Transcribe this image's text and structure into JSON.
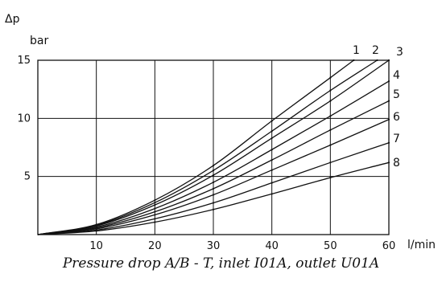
{
  "chart_data": {
    "type": "line",
    "title": "Pressure drop A/B - T, inlet I01A, outlet U01A",
    "ylabel": "Δp",
    "yunit": "bar",
    "xunit": "l/min",
    "xlim": [
      0,
      60
    ],
    "ylim": [
      0,
      15
    ],
    "x_ticks": [
      "10",
      "20",
      "30",
      "40",
      "50",
      "60"
    ],
    "y_ticks": [
      "5",
      "10",
      "15"
    ],
    "grid": true,
    "series": [
      {
        "name": "1",
        "x": [
          0,
          10,
          20,
          30,
          40,
          50,
          54
        ],
        "y": [
          0,
          0.86,
          2.96,
          5.94,
          9.78,
          13.5,
          15
        ]
      },
      {
        "name": "2",
        "x": [
          0,
          10,
          20,
          30,
          40,
          50,
          58
        ],
        "y": [
          0,
          0.8,
          2.75,
          5.52,
          8.9,
          12.4,
          15
        ]
      },
      {
        "name": "3",
        "x": [
          0,
          10,
          20,
          30,
          40,
          50,
          60
        ],
        "y": [
          0,
          0.74,
          2.55,
          5.11,
          8.3,
          11.5,
          15
        ]
      },
      {
        "name": "4",
        "x": [
          0,
          10,
          20,
          30,
          40,
          50,
          60
        ],
        "y": [
          0,
          0.65,
          2.24,
          4.5,
          7.31,
          10.2,
          13.2
        ]
      },
      {
        "name": "5",
        "x": [
          0,
          10,
          20,
          30,
          40,
          50,
          60
        ],
        "y": [
          0,
          0.57,
          1.96,
          3.95,
          6.42,
          9,
          11.5
        ]
      },
      {
        "name": "6",
        "x": [
          0,
          10,
          20,
          30,
          40,
          50,
          60
        ],
        "y": [
          0,
          0.49,
          1.7,
          3.42,
          5.55,
          7.7,
          9.9
        ]
      },
      {
        "name": "7",
        "x": [
          0,
          10,
          20,
          30,
          40,
          50,
          60
        ],
        "y": [
          0,
          0.39,
          1.36,
          2.73,
          4.45,
          6.2,
          7.9
        ]
      },
      {
        "name": "8",
        "x": [
          0,
          10,
          20,
          30,
          40,
          50,
          60
        ],
        "y": [
          0,
          0.31,
          1.07,
          2.16,
          3.5,
          4.9,
          6.2
        ]
      }
    ]
  }
}
